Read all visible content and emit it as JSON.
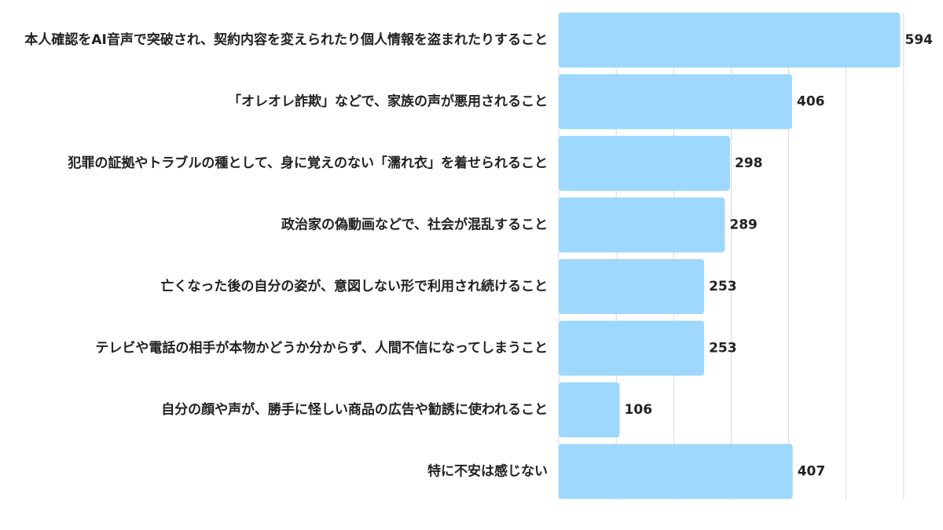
{
  "chart_data": {
    "type": "bar",
    "orientation": "horizontal",
    "categories": [
      "本人確認をAI音声で突破され、契約内容を変えられたり個人情報を盗まれたりすること",
      "「オレオレ詐欺」などで、家族の声が悪用されること",
      "犯罪の証拠やトラブルの種として、身に覚えのない「濡れ衣」を着せられること",
      "政治家の偽動画などで、社会が混乱すること",
      "亡くなった後の自分の姿が、意図しない形で利用され続けること",
      "テレビや電話の相手が本物かどうか分からず、人間不信になってしまうこと",
      "自分の顔や声が、勝手に怪しい商品の広告や勧誘に使われること",
      "特に不安は感じない"
    ],
    "values": [
      594,
      406,
      298,
      289,
      253,
      253,
      106,
      407
    ],
    "xlim": [
      0,
      600
    ],
    "grid": true,
    "legend": "none",
    "bar_color": "#9ed8fc"
  }
}
